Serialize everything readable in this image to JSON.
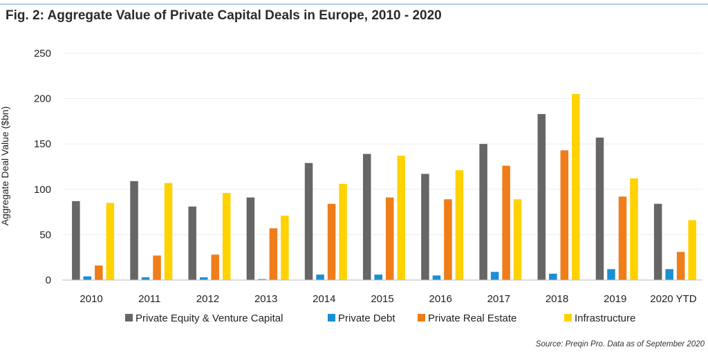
{
  "figure": {
    "title": "Fig. 2: Aggregate Value of Private Capital Deals in Europe, 2010 - 2020",
    "source": "Source: Preqin Pro. Data as of September 2020"
  },
  "chart_data": {
    "type": "bar",
    "title": "Fig. 2: Aggregate Value of Private Capital Deals in Europe, 2010 - 2020",
    "xlabel": "",
    "ylabel": "Aggregate Deal Value ($bn)",
    "ylim": [
      0,
      250
    ],
    "yticks": [
      0,
      50,
      100,
      150,
      200,
      250
    ],
    "grid": true,
    "legend_position": "bottom",
    "categories": [
      "2010",
      "2011",
      "2012",
      "2013",
      "2014",
      "2015",
      "2016",
      "2017",
      "2018",
      "2019",
      "2020 YTD"
    ],
    "series": [
      {
        "name": "Private Equity & Venture Capital",
        "color": "#666666",
        "values": [
          87,
          109,
          81,
          91,
          129,
          139,
          117,
          150,
          183,
          157,
          84
        ]
      },
      {
        "name": "Private Debt",
        "color": "#1b8fd4",
        "values": [
          4,
          3,
          3,
          1,
          6,
          6,
          5,
          9,
          7,
          12,
          12
        ]
      },
      {
        "name": "Private Real Estate",
        "color": "#ef7d1a",
        "values": [
          16,
          27,
          28,
          57,
          84,
          91,
          89,
          126,
          143,
          92,
          31
        ]
      },
      {
        "name": "Infrastructure",
        "color": "#ffd200",
        "values": [
          85,
          107,
          96,
          71,
          106,
          137,
          121,
          89,
          205,
          112,
          66
        ]
      }
    ]
  }
}
